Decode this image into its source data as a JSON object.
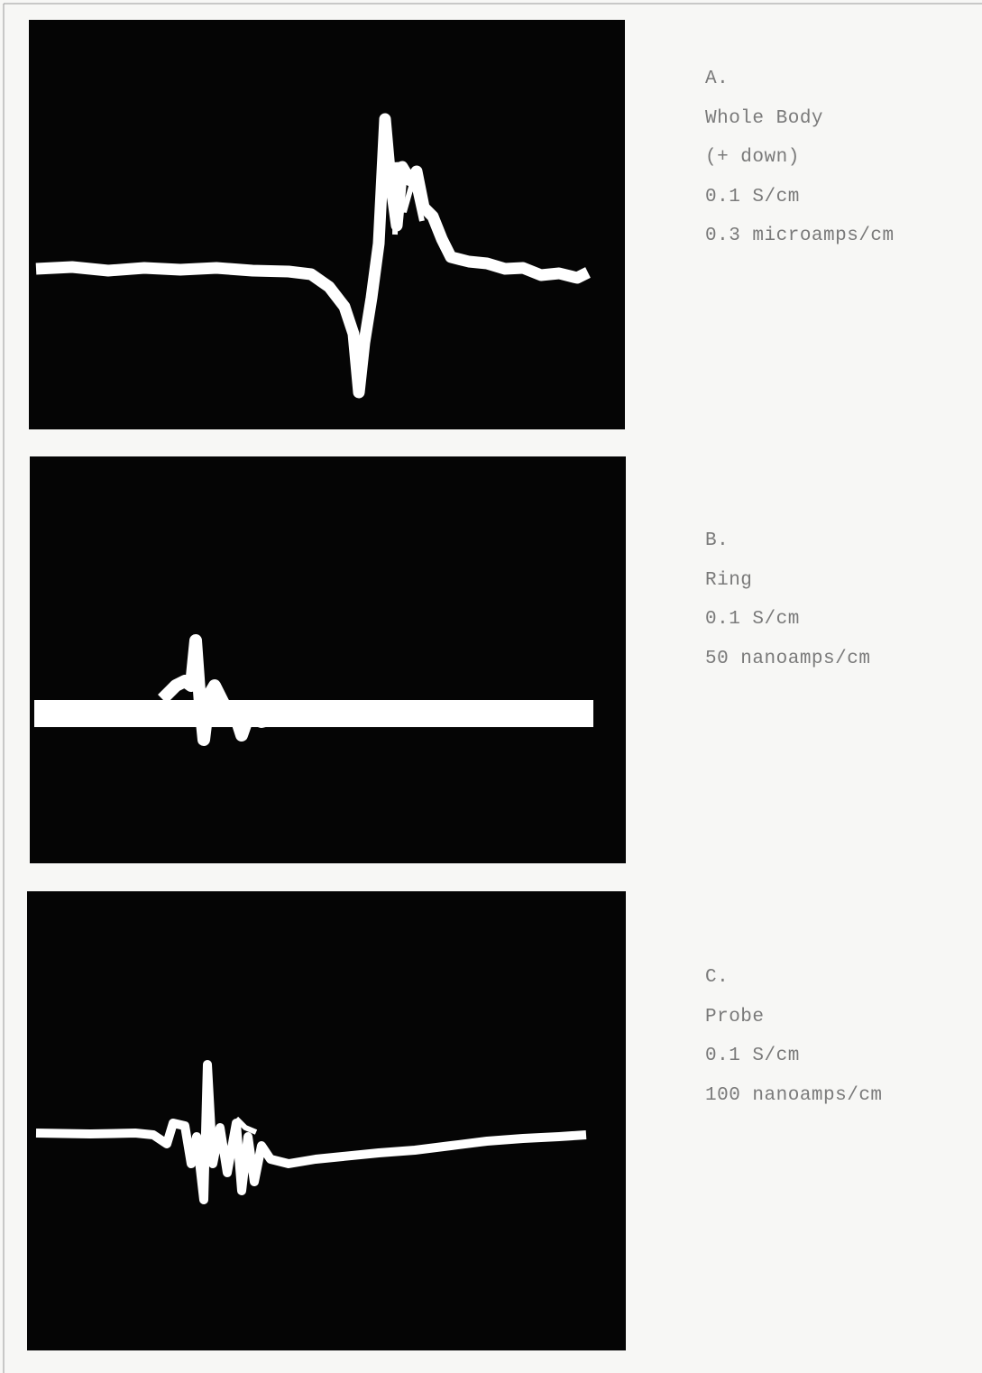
{
  "panels": [
    {
      "label": "A.",
      "lines": [
        "Whole Body",
        "(+ down)",
        "0.1 S/cm",
        "0.3 microamps/cm"
      ]
    },
    {
      "label": "B.",
      "lines": [
        "Ring",
        "0.1 S/cm",
        "50 nanoamps/cm"
      ]
    },
    {
      "label": "C.",
      "lines": [
        "Probe",
        "0.1 S/cm",
        "100 nanoamps/cm"
      ]
    }
  ]
}
